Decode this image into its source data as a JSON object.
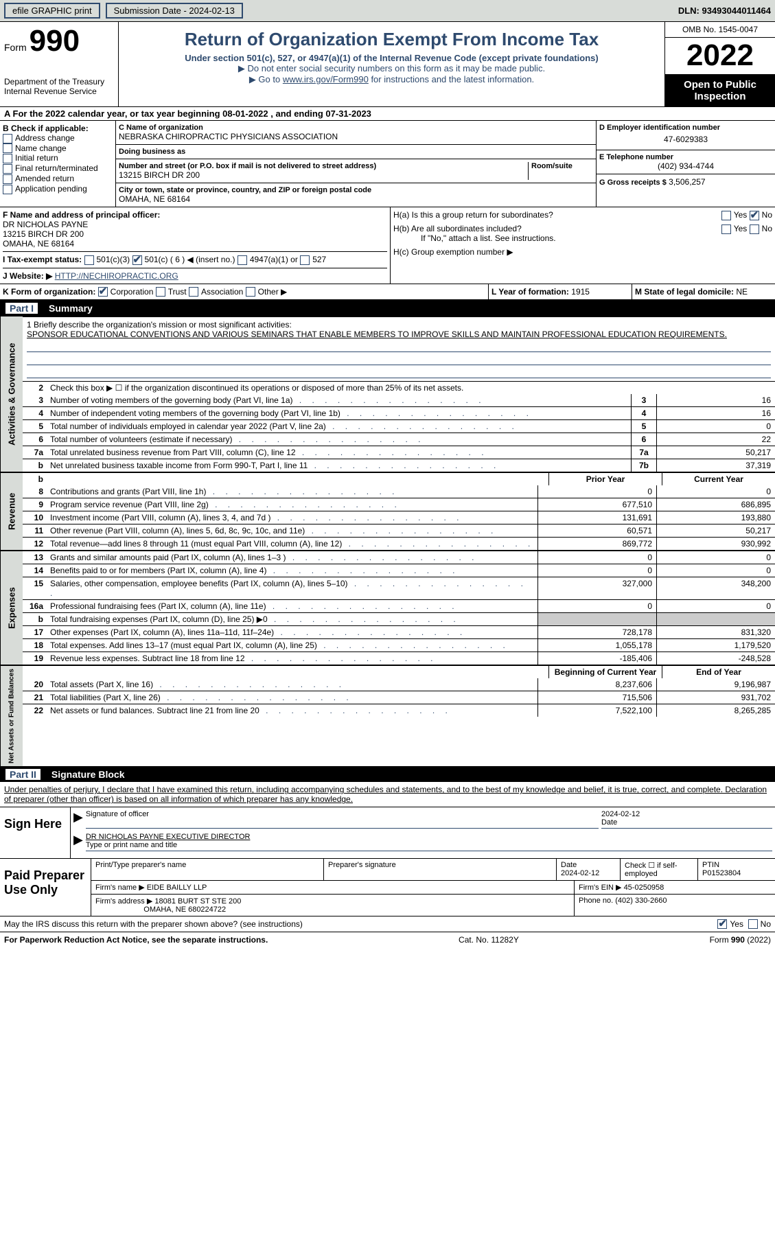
{
  "topbar": {
    "efile": "efile GRAPHIC print",
    "subdate_label": "Submission Date - 2024-02-13",
    "dln_label": "DLN: 93493044011464"
  },
  "header": {
    "form_word": "Form",
    "form_num": "990",
    "title": "Return of Organization Exempt From Income Tax",
    "sub": "Under section 501(c), 527, or 4947(a)(1) of the Internal Revenue Code (except private foundations)",
    "note1": "▶ Do not enter social security numbers on this form as it may be made public.",
    "note2_pre": "▶ Go to ",
    "note2_link": "www.irs.gov/Form990",
    "note2_post": " for instructions and the latest information.",
    "dept1": "Department of the Treasury",
    "dept2": "Internal Revenue Service",
    "omb": "OMB No. 1545-0047",
    "year": "2022",
    "open": "Open to Public Inspection"
  },
  "rowA": {
    "text": "A For the 2022 calendar year, or tax year beginning 08-01-2022    , and ending 07-31-2023"
  },
  "colB": {
    "hdr": "B Check if applicable:",
    "items": [
      "Address change",
      "Name change",
      "Initial return",
      "Final return/terminated",
      "Amended return",
      "Application pending"
    ]
  },
  "colC": {
    "name_label": "C Name of organization",
    "name": "NEBRASKA CHIROPRACTIC PHYSICIANS ASSOCIATION",
    "dba_label": "Doing business as",
    "addr_label": "Number and street (or P.O. box if mail is not delivered to street address)",
    "room_label": "Room/suite",
    "addr": "13215 BIRCH DR 200",
    "city_label": "City or town, state or province, country, and ZIP or foreign postal code",
    "city": "OMAHA, NE  68164"
  },
  "colD": {
    "ein_label": "D Employer identification number",
    "ein": "47-6029383",
    "tel_label": "E Telephone number",
    "tel": "(402) 934-4744",
    "gross_label": "G Gross receipts $",
    "gross": "3,506,257"
  },
  "secF": {
    "label": "F  Name and address of principal officer:",
    "line1": "DR NICHOLAS PAYNE",
    "line2": "13215 BIRCH DR 200",
    "line3": "OMAHA, NE  68164"
  },
  "secH": {
    "ha": "H(a)  Is this a group return for subordinates?",
    "yes": "Yes",
    "no": "No",
    "hb": "H(b)  Are all subordinates included?",
    "hb_note": "If \"No,\" attach a list. See instructions.",
    "hc": "H(c)  Group exemption number ▶"
  },
  "rowI": {
    "label": "I    Tax-exempt status:",
    "opt1": "501(c)(3)",
    "opt2": "501(c) ( 6 ) ◀ (insert no.)",
    "opt3": "4947(a)(1) or",
    "opt4": "527"
  },
  "rowJ": {
    "label": "J   Website: ▶",
    "url": "HTTP://NECHIROPRACTIC.ORG"
  },
  "rowK": {
    "label": "K Form of organization:",
    "opts": [
      "Corporation",
      "Trust",
      "Association",
      "Other ▶"
    ],
    "l_label": "L Year of formation:",
    "l_val": "1915",
    "m_label": "M State of legal domicile:",
    "m_val": "NE"
  },
  "part1": {
    "num": "Part I",
    "title": "Summary"
  },
  "summary": {
    "sideA": "Activities & Governance",
    "sideB": "Revenue",
    "sideC": "Expenses",
    "sideD": "Net Assets or Fund Balances",
    "briefly": "1   Briefly describe the organization's mission or most significant activities:",
    "mission": "SPONSOR EDUCATIONAL CONVENTIONS AND VARIOUS SEMINARS THAT ENABLE MEMBERS TO IMPROVE SKILLS AND MAINTAIN PROFESSIONAL EDUCATION REQUIREMENTS.",
    "row2": "Check this box ▶ ☐  if the organization discontinued its operations or disposed of more than 25% of its net assets.",
    "rows1": [
      {
        "n": "3",
        "d": "Number of voting members of the governing body (Part VI, line 1a)",
        "cn": "3",
        "v": "16"
      },
      {
        "n": "4",
        "d": "Number of independent voting members of the governing body (Part VI, line 1b)",
        "cn": "4",
        "v": "16"
      },
      {
        "n": "5",
        "d": "Total number of individuals employed in calendar year 2022 (Part V, line 2a)",
        "cn": "5",
        "v": "0"
      },
      {
        "n": "6",
        "d": "Total number of volunteers (estimate if necessary)",
        "cn": "6",
        "v": "22"
      },
      {
        "n": "7a",
        "d": "Total unrelated business revenue from Part VIII, column (C), line 12",
        "cn": "7a",
        "v": "50,217"
      },
      {
        "n": "b",
        "d": "Net unrelated business taxable income from Form 990-T, Part I, line 11",
        "cn": "7b",
        "v": "37,319"
      }
    ],
    "hdrPrior": "Prior Year",
    "hdrCurrent": "Current Year",
    "rowsRev": [
      {
        "n": "8",
        "d": "Contributions and grants (Part VIII, line 1h)",
        "p": "0",
        "c": "0"
      },
      {
        "n": "9",
        "d": "Program service revenue (Part VIII, line 2g)",
        "p": "677,510",
        "c": "686,895"
      },
      {
        "n": "10",
        "d": "Investment income (Part VIII, column (A), lines 3, 4, and 7d )",
        "p": "131,691",
        "c": "193,880"
      },
      {
        "n": "11",
        "d": "Other revenue (Part VIII, column (A), lines 5, 6d, 8c, 9c, 10c, and 11e)",
        "p": "60,571",
        "c": "50,217"
      },
      {
        "n": "12",
        "d": "Total revenue—add lines 8 through 11 (must equal Part VIII, column (A), line 12)",
        "p": "869,772",
        "c": "930,992"
      }
    ],
    "rowsExp": [
      {
        "n": "13",
        "d": "Grants and similar amounts paid (Part IX, column (A), lines 1–3 )",
        "p": "0",
        "c": "0"
      },
      {
        "n": "14",
        "d": "Benefits paid to or for members (Part IX, column (A), line 4)",
        "p": "0",
        "c": "0"
      },
      {
        "n": "15",
        "d": "Salaries, other compensation, employee benefits (Part IX, column (A), lines 5–10)",
        "p": "327,000",
        "c": "348,200"
      },
      {
        "n": "16a",
        "d": "Professional fundraising fees (Part IX, column (A), line 11e)",
        "p": "0",
        "c": "0"
      },
      {
        "n": "b",
        "d": "Total fundraising expenses (Part IX, column (D), line 25) ▶0",
        "p": "",
        "c": "",
        "grey": true
      },
      {
        "n": "17",
        "d": "Other expenses (Part IX, column (A), lines 11a–11d, 11f–24e)",
        "p": "728,178",
        "c": "831,320"
      },
      {
        "n": "18",
        "d": "Total expenses. Add lines 13–17 (must equal Part IX, column (A), line 25)",
        "p": "1,055,178",
        "c": "1,179,520"
      },
      {
        "n": "19",
        "d": "Revenue less expenses. Subtract line 18 from line 12",
        "p": "-185,406",
        "c": "-248,528"
      }
    ],
    "hdrBeg": "Beginning of Current Year",
    "hdrEnd": "End of Year",
    "rowsNet": [
      {
        "n": "20",
        "d": "Total assets (Part X, line 16)",
        "p": "8,237,606",
        "c": "9,196,987"
      },
      {
        "n": "21",
        "d": "Total liabilities (Part X, line 26)",
        "p": "715,506",
        "c": "931,702"
      },
      {
        "n": "22",
        "d": "Net assets or fund balances. Subtract line 21 from line 20",
        "p": "7,522,100",
        "c": "8,265,285"
      }
    ]
  },
  "part2": {
    "num": "Part II",
    "title": "Signature Block",
    "declare": "Under penalties of perjury, I declare that I have examined this return, including accompanying schedules and statements, and to the best of my knowledge and belief, it is true, correct, and complete. Declaration of preparer (other than officer) is based on all information of which preparer has any knowledge."
  },
  "sign": {
    "label": "Sign Here",
    "sig_lbl": "Signature of officer",
    "date_lbl": "Date",
    "date": "2024-02-12",
    "name": "DR NICHOLAS PAYNE  EXECUTIVE DIRECTOR",
    "name_lbl": "Type or print name and title"
  },
  "prep": {
    "label": "Paid Preparer Use Only",
    "h1": "Print/Type preparer's name",
    "h2": "Preparer's signature",
    "h3": "Date",
    "h3v": "2024-02-12",
    "h4": "Check ☐ if self-employed",
    "h5": "PTIN",
    "h5v": "P01523804",
    "fn_lbl": "Firm's name      ▶",
    "fn": "EIDE BAILLY LLP",
    "fein_lbl": "Firm's EIN ▶",
    "fein": "45-0250958",
    "fa_lbl": "Firm's address ▶",
    "fa1": "18081 BURT ST STE 200",
    "fa2": "OMAHA, NE  680224722",
    "ph_lbl": "Phone no.",
    "ph": "(402) 330-2660"
  },
  "footq": {
    "q": "May the IRS discuss this return with the preparer shown above? (see instructions)",
    "yes": "Yes",
    "no": "No"
  },
  "footer": {
    "l": "For Paperwork Reduction Act Notice, see the separate instructions.",
    "m": "Cat. No. 11282Y",
    "r": "Form 990 (2022)"
  }
}
